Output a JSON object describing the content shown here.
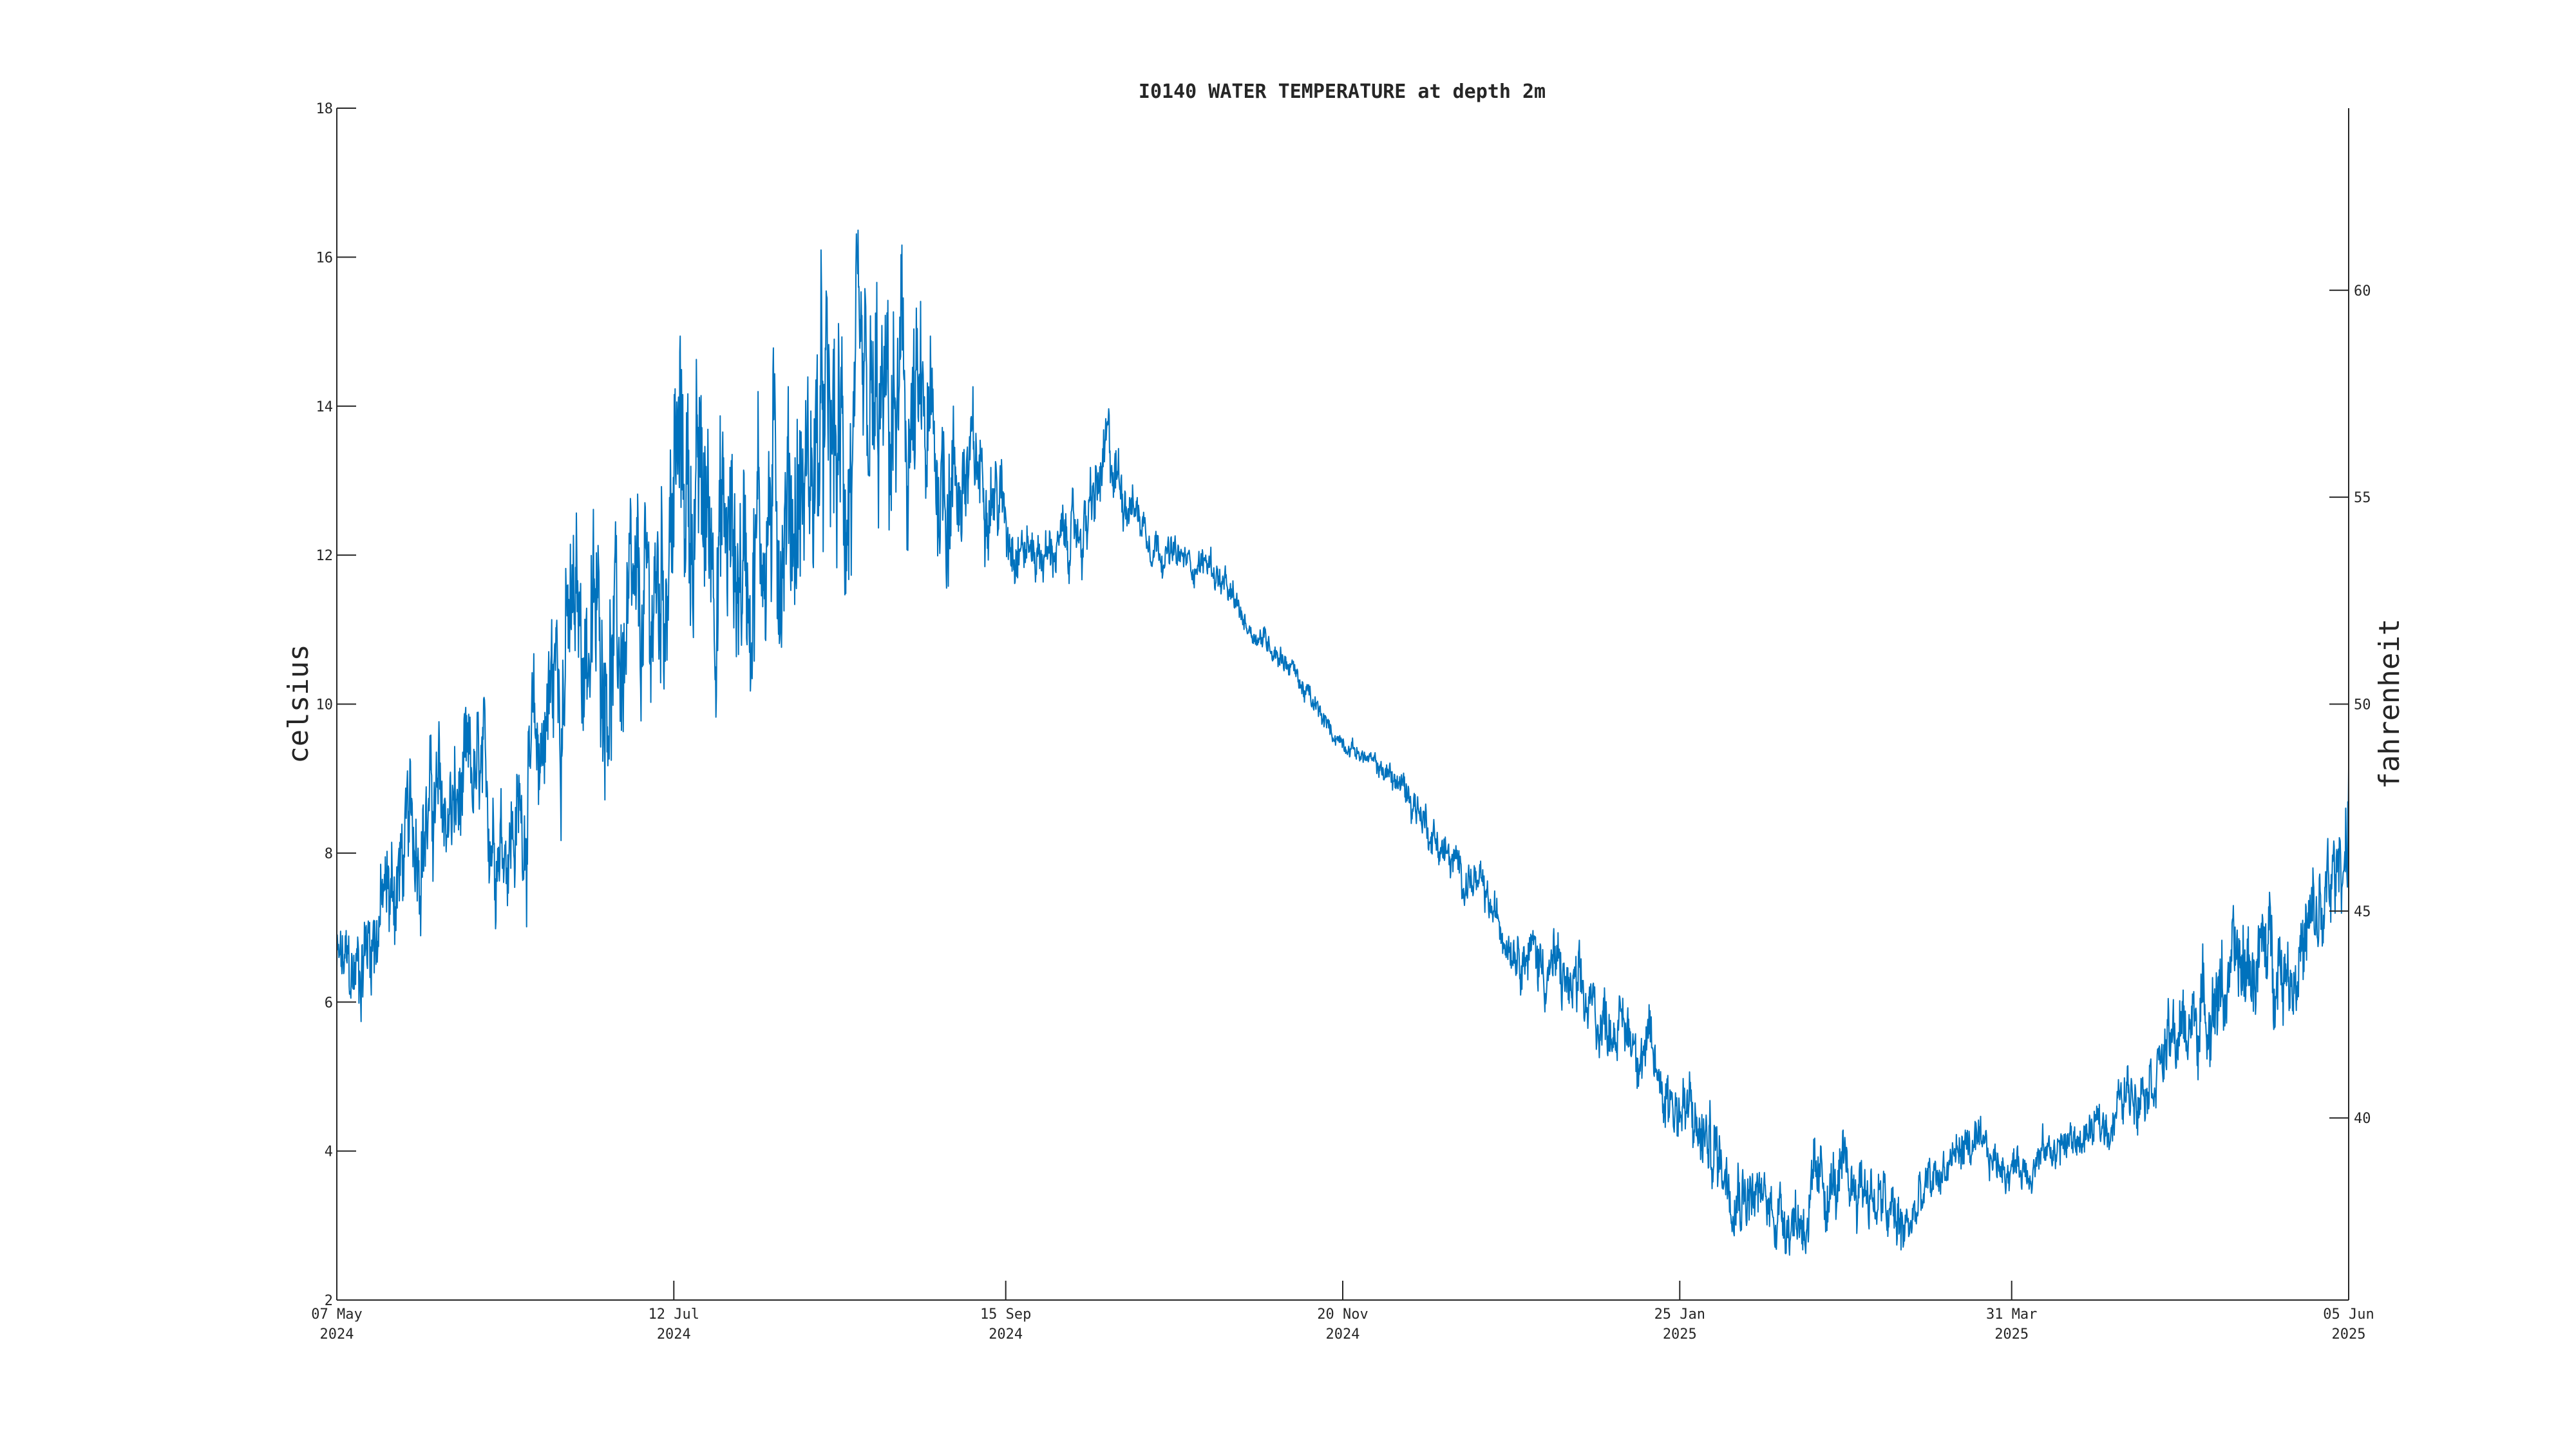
{
  "chart_data": {
    "type": "line",
    "title": "I0140 WATER TEMPERATURE at depth 2m",
    "xlabel": "",
    "ylabel": "celsius",
    "y2label": "fahrenheit",
    "grid": false,
    "legend": "none",
    "xlim": [
      "2024-05-07",
      "2025-06-05"
    ],
    "ylim": [
      2,
      18
    ],
    "y2lim": [
      35.6,
      64.4
    ],
    "x_ticks": [
      {
        "date": "2024-05-07",
        "label": "07 May",
        "year": "2024"
      },
      {
        "date": "2024-07-12",
        "label": "12 Jul",
        "year": "2024"
      },
      {
        "date": "2024-09-15",
        "label": "15 Sep",
        "year": "2024"
      },
      {
        "date": "2024-11-20",
        "label": "20 Nov",
        "year": "2024"
      },
      {
        "date": "2025-01-25",
        "label": "25 Jan",
        "year": "2025"
      },
      {
        "date": "2025-03-31",
        "label": "31 Mar",
        "year": "2025"
      },
      {
        "date": "2025-06-05",
        "label": "05 Jun",
        "year": "2025"
      }
    ],
    "y_ticks": [
      2,
      4,
      6,
      8,
      10,
      12,
      14,
      16,
      18
    ],
    "y2_ticks": [
      40,
      45,
      50,
      55,
      60
    ],
    "series": [
      {
        "color": "#0072BD",
        "x": [
          "2024-05-07",
          "2024-05-10",
          "2024-05-14",
          "2024-05-18",
          "2024-05-22",
          "2024-05-26",
          "2024-05-30",
          "2024-06-03",
          "2024-06-07",
          "2024-06-11",
          "2024-06-15",
          "2024-06-19",
          "2024-06-23",
          "2024-06-27",
          "2024-07-01",
          "2024-07-05",
          "2024-07-09",
          "2024-07-13",
          "2024-07-17",
          "2024-07-21",
          "2024-07-25",
          "2024-07-29",
          "2024-08-02",
          "2024-08-06",
          "2024-08-10",
          "2024-08-14",
          "2024-08-18",
          "2024-08-22",
          "2024-08-26",
          "2024-08-30",
          "2024-09-03",
          "2024-09-07",
          "2024-09-11",
          "2024-09-15",
          "2024-09-19",
          "2024-09-23",
          "2024-09-27",
          "2024-10-01",
          "2024-10-05",
          "2024-10-09",
          "2024-10-13",
          "2024-10-17",
          "2024-10-21",
          "2024-10-25",
          "2024-10-29",
          "2024-11-02",
          "2024-11-06",
          "2024-11-10",
          "2024-11-14",
          "2024-11-18",
          "2024-11-22",
          "2024-11-26",
          "2024-11-30",
          "2024-12-04",
          "2024-12-08",
          "2024-12-12",
          "2024-12-16",
          "2024-12-20",
          "2024-12-24",
          "2024-12-28",
          "2025-01-01",
          "2025-01-05",
          "2025-01-09",
          "2025-01-13",
          "2025-01-17",
          "2025-01-21",
          "2025-01-25",
          "2025-01-29",
          "2025-02-02",
          "2025-02-06",
          "2025-02-10",
          "2025-02-14",
          "2025-02-18",
          "2025-02-22",
          "2025-02-26",
          "2025-03-02",
          "2025-03-06",
          "2025-03-10",
          "2025-03-14",
          "2025-03-18",
          "2025-03-22",
          "2025-03-26",
          "2025-03-30",
          "2025-04-03",
          "2025-04-07",
          "2025-04-11",
          "2025-04-15",
          "2025-04-19",
          "2025-04-23",
          "2025-04-27",
          "2025-05-01",
          "2025-05-05",
          "2025-05-09",
          "2025-05-13",
          "2025-05-17",
          "2025-05-21",
          "2025-05-25",
          "2025-05-29",
          "2025-06-02",
          "2025-06-05"
        ],
        "mean": [
          6.5,
          6.3,
          7.0,
          7.5,
          8.3,
          8.6,
          8.5,
          8.9,
          8.4,
          8.3,
          9.2,
          10.5,
          11.0,
          10.9,
          10.6,
          10.8,
          11.5,
          13.2,
          12.6,
          12.3,
          11.9,
          12.4,
          12.7,
          12.8,
          13.5,
          13.1,
          13.2,
          13.6,
          13.8,
          13.4,
          13.1,
          13.0,
          13.2,
          12.5,
          12.1,
          12.0,
          12.2,
          12.4,
          13.3,
          12.8,
          12.3,
          12.0,
          11.9,
          11.9,
          11.4,
          11.0,
          10.8,
          10.5,
          10.0,
          9.6,
          9.4,
          9.2,
          9.0,
          8.7,
          8.2,
          7.8,
          7.6,
          7.1,
          6.8,
          6.6,
          6.4,
          6.0,
          5.8,
          5.7,
          5.5,
          5.0,
          4.6,
          4.2,
          3.9,
          3.6,
          3.3,
          3.2,
          3.1,
          3.5,
          3.5,
          3.6,
          3.2,
          2.9,
          3.4,
          3.8,
          4.1,
          3.9,
          3.8,
          3.8,
          4.0,
          4.1,
          4.2,
          4.4,
          4.8,
          5.1,
          5.4,
          5.7,
          6.0,
          6.3,
          6.5,
          6.7,
          6.5,
          6.9,
          7.5,
          8.5
        ],
        "range": [
          1.0,
          1.2,
          1.4,
          1.5,
          1.6,
          1.6,
          1.6,
          1.6,
          1.5,
          1.6,
          2.0,
          2.4,
          2.4,
          2.4,
          2.4,
          2.4,
          2.6,
          3.0,
          3.0,
          3.0,
          3.0,
          3.0,
          3.0,
          3.0,
          3.2,
          3.4,
          3.2,
          3.0,
          3.0,
          2.6,
          2.2,
          1.6,
          1.2,
          1.0,
          0.7,
          0.6,
          0.7,
          0.9,
          1.0,
          0.6,
          0.5,
          0.4,
          0.4,
          0.4,
          0.4,
          0.3,
          0.3,
          0.3,
          0.3,
          0.2,
          0.2,
          0.2,
          0.4,
          0.5,
          0.5,
          0.5,
          0.5,
          0.5,
          0.6,
          0.8,
          0.9,
          0.9,
          0.8,
          0.7,
          0.8,
          0.9,
          1.0,
          1.0,
          1.0,
          0.9,
          0.8,
          0.8,
          0.9,
          0.9,
          0.9,
          0.9,
          0.9,
          0.8,
          0.7,
          0.6,
          0.6,
          0.5,
          0.5,
          0.5,
          0.5,
          0.5,
          0.5,
          0.6,
          0.7,
          0.8,
          0.9,
          1.0,
          1.1,
          1.2,
          1.2,
          1.2,
          1.2,
          1.3,
          1.4,
          1.5
        ]
      }
    ]
  }
}
